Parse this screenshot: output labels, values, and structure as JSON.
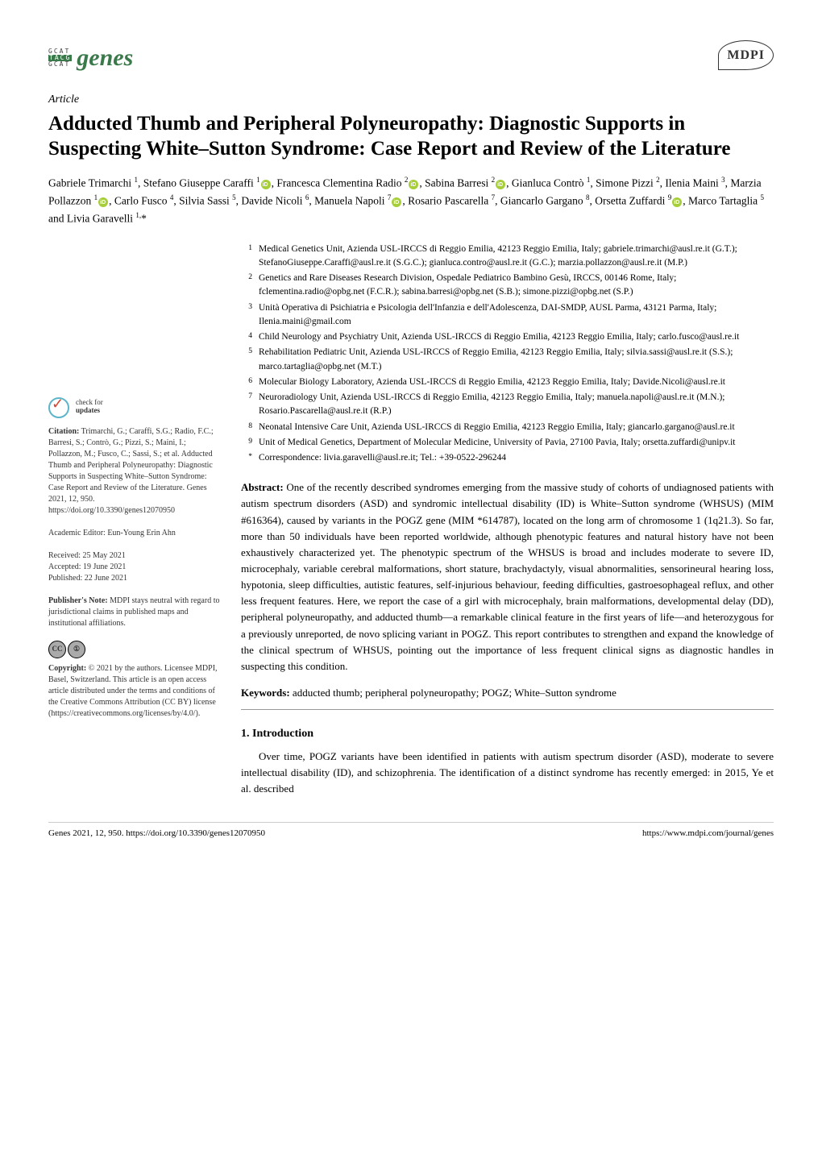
{
  "journal": {
    "name": "genes",
    "logo_rows": [
      "GCAT",
      "TACG",
      "GCAT"
    ]
  },
  "publisher_logo": "MDPI",
  "article_type": "Article",
  "title": "Adducted Thumb and Peripheral Polyneuropathy: Diagnostic Supports in Suspecting White–Sutton Syndrome: Case Report and Review of the Literature",
  "authors_html": "Gabriele Trimarchi <sup>1</sup>, Stefano Giuseppe Caraffi <sup>1</sup>{ORCID}, Francesca Clementina Radio <sup>2</sup>{ORCID}, Sabina Barresi <sup>2</sup>{ORCID}, Gianluca Contrò <sup>1</sup>, Simone Pizzi <sup>2</sup>, Ilenia Maini <sup>3</sup>, Marzia Pollazzon <sup>1</sup>{ORCID}, Carlo Fusco <sup>4</sup>, Silvia Sassi <sup>5</sup>, Davide Nicoli <sup>6</sup>, Manuela Napoli <sup>7</sup>{ORCID}, Rosario Pascarella <sup>7</sup>, Giancarlo Gargano <sup>8</sup>, Orsetta Zuffardi <sup>9</sup>{ORCID}, Marco Tartaglia <sup>5</sup> and Livia Garavelli <sup>1,</sup>*",
  "affiliations": [
    {
      "n": "1",
      "text": "Medical Genetics Unit, Azienda USL-IRCCS di Reggio Emilia, 42123 Reggio Emilia, Italy; gabriele.trimarchi@ausl.re.it (G.T.); StefanoGiuseppe.Caraffi@ausl.re.it (S.G.C.); gianluca.contro@ausl.re.it (G.C.); marzia.pollazzon@ausl.re.it (M.P.)"
    },
    {
      "n": "2",
      "text": "Genetics and Rare Diseases Research Division, Ospedale Pediatrico Bambino Gesù, IRCCS, 00146 Rome, Italy; fclementina.radio@opbg.net (F.C.R.); sabina.barresi@opbg.net (S.B.); simone.pizzi@opbg.net (S.P.)"
    },
    {
      "n": "3",
      "text": "Unità Operativa di Psichiatria e Psicologia dell'Infanzia e dell'Adolescenza, DAI-SMDP, AUSL Parma, 43121 Parma, Italy; Ilenia.maini@gmail.com"
    },
    {
      "n": "4",
      "text": "Child Neurology and Psychiatry Unit, Azienda USL-IRCCS di Reggio Emilia, 42123 Reggio Emilia, Italy; carlo.fusco@ausl.re.it"
    },
    {
      "n": "5",
      "text": "Rehabilitation Pediatric Unit, Azienda USL-IRCCS of Reggio Emilia, 42123 Reggio Emilia, Italy; silvia.sassi@ausl.re.it (S.S.); marco.tartaglia@opbg.net (M.T.)"
    },
    {
      "n": "6",
      "text": "Molecular Biology Laboratory, Azienda USL-IRCCS di Reggio Emilia, 42123 Reggio Emilia, Italy; Davide.Nicoli@ausl.re.it"
    },
    {
      "n": "7",
      "text": "Neuroradiology Unit, Azienda USL-IRCCS di Reggio Emilia, 42123 Reggio Emilia, Italy; manuela.napoli@ausl.re.it (M.N.); Rosario.Pascarella@ausl.re.it (R.P.)"
    },
    {
      "n": "8",
      "text": "Neonatal Intensive Care Unit, Azienda USL-IRCCS di Reggio Emilia, 42123 Reggio Emilia, Italy; giancarlo.gargano@ausl.re.it"
    },
    {
      "n": "9",
      "text": "Unit of Medical Genetics, Department of Molecular Medicine, University of Pavia, 27100 Pavia, Italy; orsetta.zuffardi@unipv.it"
    },
    {
      "n": "*",
      "text": "Correspondence: livia.garavelli@ausl.re.it; Tel.: +39-0522-296244"
    }
  ],
  "abstract_label": "Abstract:",
  "abstract": "One of the recently described syndromes emerging from the massive study of cohorts of undiagnosed patients with autism spectrum disorders (ASD) and syndromic intellectual disability (ID) is White–Sutton syndrome (WHSUS) (MIM #616364), caused by variants in the POGZ gene (MIM *614787), located on the long arm of chromosome 1 (1q21.3). So far, more than 50 individuals have been reported worldwide, although phenotypic features and natural history have not been exhaustively characterized yet. The phenotypic spectrum of the WHSUS is broad and includes moderate to severe ID, microcephaly, variable cerebral malformations, short stature, brachydactyly, visual abnormalities, sensorineural hearing loss, hypotonia, sleep difficulties, autistic features, self-injurious behaviour, feeding difficulties, gastroesophageal reflux, and other less frequent features. Here, we report the case of a girl with microcephaly, brain malformations, developmental delay (DD), peripheral polyneuropathy, and adducted thumb—a remarkable clinical feature in the first years of life—and heterozygous for a previously unreported, de novo splicing variant in POGZ. This report contributes to strengthen and expand the knowledge of the clinical spectrum of WHSUS, pointing out the importance of less frequent clinical signs as diagnostic handles in suspecting this condition.",
  "keywords_label": "Keywords:",
  "keywords": "adducted thumb; peripheral polyneuropathy; POGZ; White–Sutton syndrome",
  "section1_head": "1. Introduction",
  "section1_body": "Over time, POGZ variants have been identified in patients with autism spectrum disorder (ASD), moderate to severe intellectual disability (ID), and schizophrenia. The identification of a distinct syndrome has recently emerged: in 2015, Ye et al. described",
  "sidebar": {
    "check_updates": "check for\nupdates",
    "citation_label": "Citation:",
    "citation": "Trimarchi, G.; Caraffi, S.G.; Radio, F.C.; Barresi, S.; Contrò, G.; Pizzi, S.; Maini, I.; Pollazzon, M.; Fusco, C.; Sassi, S.; et al. Adducted Thumb and Peripheral Polyneuropathy: Diagnostic Supports in Suspecting White–Sutton Syndrome: Case Report and Review of the Literature. Genes 2021, 12, 950. https://doi.org/10.3390/genes12070950",
    "editor_label": "Academic Editor:",
    "editor": "Eun-Young Erin Ahn",
    "received": "Received: 25 May 2021",
    "accepted": "Accepted: 19 June 2021",
    "published": "Published: 22 June 2021",
    "pubnote_label": "Publisher's Note:",
    "pubnote": "MDPI stays neutral with regard to jurisdictional claims in published maps and institutional affiliations.",
    "copyright_label": "Copyright:",
    "copyright": "© 2021 by the authors. Licensee MDPI, Basel, Switzerland. This article is an open access article distributed under the terms and conditions of the Creative Commons Attribution (CC BY) license (https://creativecommons.org/licenses/by/4.0/)."
  },
  "footer": {
    "left": "Genes 2021, 12, 950. https://doi.org/10.3390/genes12070950",
    "right": "https://www.mdpi.com/journal/genes"
  },
  "colors": {
    "journal_green": "#3a7a4a",
    "orcid_green": "#a6ce39"
  }
}
